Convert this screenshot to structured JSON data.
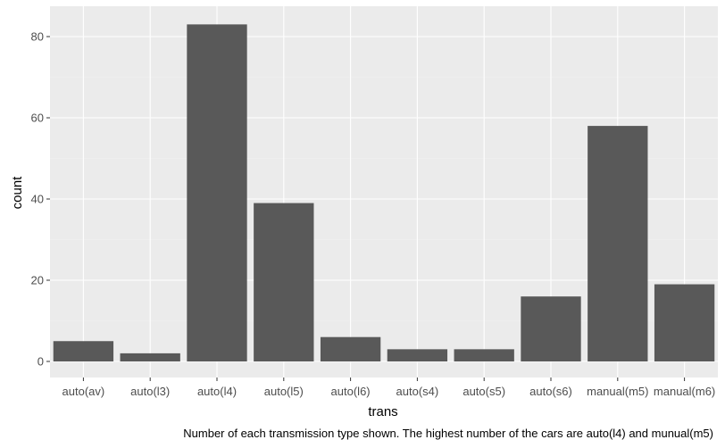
{
  "chart_data": {
    "type": "bar",
    "categories": [
      "auto(av)",
      "auto(l3)",
      "auto(l4)",
      "auto(l5)",
      "auto(l6)",
      "auto(s4)",
      "auto(s5)",
      "auto(s6)",
      "manual(m5)",
      "manual(m6)"
    ],
    "values": [
      5,
      2,
      83,
      39,
      6,
      3,
      3,
      16,
      58,
      19
    ],
    "title": "",
    "xlabel": "trans",
    "ylabel": "count",
    "ylim": [
      0,
      85
    ],
    "yticks": [
      0,
      20,
      40,
      60,
      80
    ],
    "grid": true,
    "legend": "none",
    "caption": "Number of each transmission type shown. The highest number of the cars are auto(l4) and munual(m5)",
    "colors": {
      "panel_background": "#ebebeb",
      "grid_major": "#ffffff",
      "grid_minor": "#f2f2f2",
      "bar_fill": "#595959",
      "tick_text": "#4d4d4d",
      "tick_mark": "#333333"
    }
  }
}
